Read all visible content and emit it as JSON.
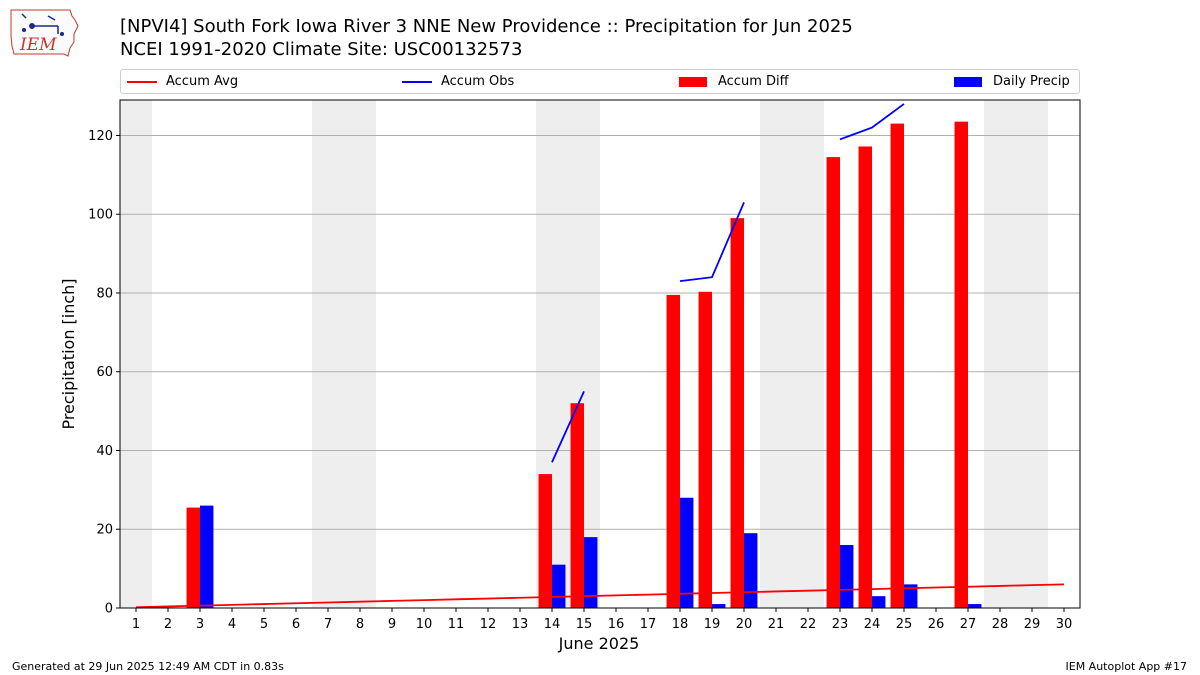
{
  "header": {
    "logo_text": "IEM",
    "title_line1": "[NPVI4] South Fork Iowa River 3 NNE New Providence :: Precipitation for Jun 2025",
    "title_line2": "NCEI 1991-2020 Climate Site: USC00132573"
  },
  "legend": {
    "items": [
      {
        "label": "Accum Avg",
        "color": "#ff0000",
        "kind": "line"
      },
      {
        "label": "Accum Obs",
        "color": "#0000ff",
        "kind": "line"
      },
      {
        "label": "Accum Diff",
        "color": "#ff0000",
        "kind": "bar"
      },
      {
        "label": "Daily Precip",
        "color": "#0000ff",
        "kind": "bar"
      }
    ]
  },
  "footer": {
    "left": "Generated at 29 Jun 2025 12:49 AM CDT in 0.83s",
    "right": "IEM Autoplot App #17"
  },
  "chart_data": {
    "type": "bar",
    "xlabel": "June 2025",
    "ylabel": "Precipitation [inch]",
    "ylim": [
      0,
      129
    ],
    "yticks": [
      0,
      20,
      40,
      60,
      80,
      100,
      120
    ],
    "grid": true,
    "legend_position": "top",
    "weekend_shaded_days": [
      1,
      7,
      8,
      14,
      15,
      21,
      22,
      28,
      29
    ],
    "categories": [
      "1",
      "2",
      "3",
      "4",
      "5",
      "6",
      "7",
      "8",
      "9",
      "10",
      "11",
      "12",
      "13",
      "14",
      "15",
      "16",
      "17",
      "18",
      "19",
      "20",
      "21",
      "22",
      "23",
      "24",
      "25",
      "26",
      "27",
      "28",
      "29",
      "30"
    ],
    "series": [
      {
        "name": "Accum Avg",
        "type": "line",
        "color": "#ff0000",
        "values": [
          0.2,
          0.4,
          0.6,
          0.8,
          1.0,
          1.2,
          1.4,
          1.6,
          1.8,
          2.0,
          2.2,
          2.4,
          2.6,
          2.8,
          3.0,
          3.2,
          3.4,
          3.6,
          3.8,
          4.0,
          4.2,
          4.4,
          4.6,
          4.8,
          5.0,
          5.2,
          5.4,
          5.6,
          5.8,
          6.0
        ]
      },
      {
        "name": "Accum Obs",
        "type": "line",
        "color": "#0000ff",
        "values": [
          null,
          null,
          null,
          null,
          null,
          null,
          null,
          null,
          null,
          null,
          null,
          null,
          null,
          37,
          55,
          null,
          null,
          83,
          84,
          103,
          null,
          null,
          119,
          122,
          128,
          null,
          null,
          null,
          null,
          null
        ]
      },
      {
        "name": "Accum Diff",
        "type": "bar",
        "color": "#ff0000",
        "values": [
          0,
          0,
          25.5,
          0,
          0,
          0,
          0,
          0,
          0,
          0,
          0,
          0,
          0,
          34,
          52,
          0,
          0,
          79.5,
          80.3,
          99,
          0,
          0,
          114.5,
          117.2,
          123,
          0,
          123.5,
          0,
          0,
          0
        ]
      },
      {
        "name": "Daily Precip",
        "type": "bar",
        "color": "#0000ff",
        "values": [
          0,
          0,
          26,
          0,
          0,
          0,
          0,
          0,
          0,
          0,
          0,
          0,
          0,
          11,
          18,
          0,
          0,
          28,
          1,
          19,
          0,
          0,
          16,
          3,
          6,
          0,
          1,
          0,
          0,
          0
        ]
      }
    ]
  }
}
